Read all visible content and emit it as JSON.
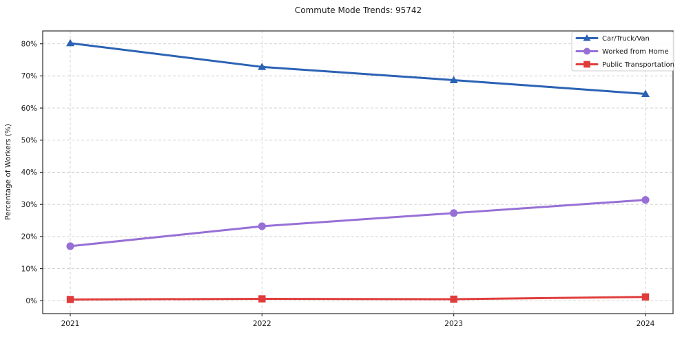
{
  "chart_data": {
    "type": "line",
    "title": "Commute Mode Trends: 95742",
    "xlabel": "",
    "ylabel": "Percentage of Workers (%)",
    "categories": [
      "2021",
      "2022",
      "2023",
      "2024"
    ],
    "series": [
      {
        "name": "Car/Truck/Van",
        "marker": "triangle",
        "color": "#2b62b4",
        "values": [
          80.2,
          72.8,
          68.7,
          64.4
        ]
      },
      {
        "name": "Worked from Home",
        "marker": "circle",
        "color": "#9770d6",
        "values": [
          17.0,
          23.2,
          27.3,
          31.4
        ]
      },
      {
        "name": "Public Transportation",
        "marker": "square",
        "color": "#e03c3c",
        "values": [
          0.4,
          0.6,
          0.5,
          1.2
        ]
      }
    ],
    "yticks": [
      0,
      10,
      20,
      30,
      40,
      50,
      60,
      70,
      80
    ],
    "ytick_suffix": "%",
    "ylim": [
      -4,
      84
    ],
    "grid": true,
    "grid_style": "dashed",
    "legend_position": "top-right",
    "colors": {
      "grid": "#cdcdcd",
      "spine": "#2b2b2b",
      "background": "#ffffff",
      "legend_border": "#cccccc"
    }
  }
}
